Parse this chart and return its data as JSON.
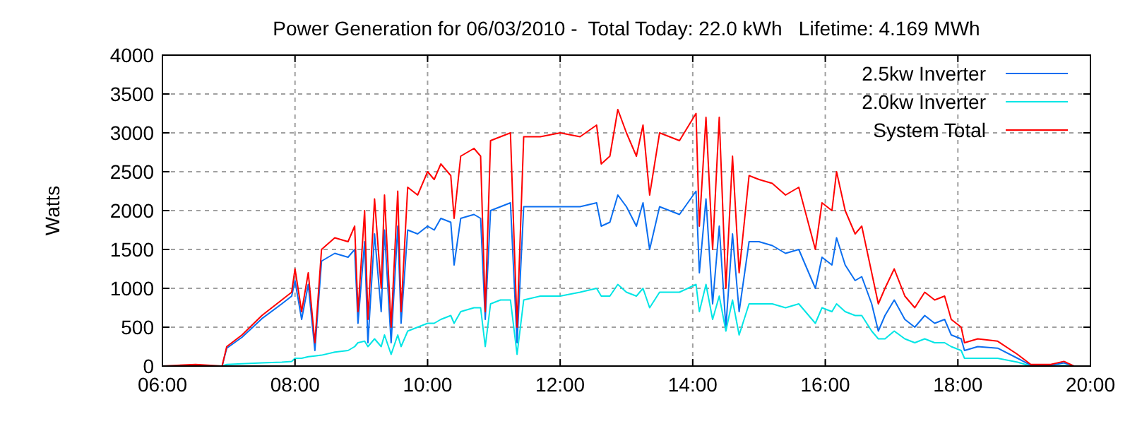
{
  "chart_data": {
    "type": "line",
    "title": "Power Generation for 06/03/2010 -  Total Today: 22.0 kWh   Lifetime: 4.169 MWh",
    "ylabel": "Watts",
    "x": [
      6.0,
      6.5,
      6.9,
      6.97,
      7.2,
      7.5,
      7.8,
      7.95,
      8.0,
      8.1,
      8.2,
      8.3,
      8.4,
      8.6,
      8.8,
      8.9,
      8.95,
      9.05,
      9.1,
      9.2,
      9.3,
      9.35,
      9.45,
      9.55,
      9.6,
      9.7,
      9.85,
      10.0,
      10.1,
      10.2,
      10.35,
      10.4,
      10.5,
      10.7,
      10.8,
      10.87,
      10.95,
      11.1,
      11.25,
      11.35,
      11.45,
      11.7,
      12.0,
      12.3,
      12.55,
      12.62,
      12.75,
      12.87,
      13.0,
      13.15,
      13.25,
      13.35,
      13.5,
      13.8,
      14.05,
      14.1,
      14.2,
      14.3,
      14.4,
      14.5,
      14.6,
      14.7,
      14.85,
      15.0,
      15.2,
      15.4,
      15.6,
      15.85,
      15.95,
      16.1,
      16.17,
      16.3,
      16.45,
      16.55,
      16.7,
      16.8,
      16.9,
      17.04,
      17.2,
      17.35,
      17.5,
      17.65,
      17.8,
      17.9,
      18.05,
      18.1,
      18.3,
      18.6,
      18.9,
      19.1,
      19.4,
      19.6,
      19.75
    ],
    "series": [
      {
        "name": "2.5kw Inverter",
        "color": "#0a6ef0",
        "values": [
          null,
          null,
          0,
          230,
          370,
          610,
          800,
          900,
          1100,
          600,
          1050,
          200,
          1350,
          1450,
          1400,
          1500,
          550,
          1600,
          300,
          1700,
          700,
          1750,
          300,
          1800,
          550,
          1750,
          1700,
          1800,
          1750,
          1900,
          1850,
          1300,
          1900,
          1950,
          1900,
          600,
          2000,
          2050,
          2100,
          300,
          2050,
          2050,
          2050,
          2050,
          2100,
          1800,
          1850,
          2200,
          2050,
          1800,
          2100,
          1500,
          2050,
          1950,
          2250,
          1200,
          2150,
          800,
          1800,
          500,
          1700,
          700,
          1600,
          1600,
          1550,
          1450,
          1500,
          1000,
          1400,
          1300,
          1650,
          1300,
          1100,
          1150,
          800,
          450,
          650,
          850,
          600,
          500,
          650,
          550,
          600,
          400,
          350,
          200,
          250,
          230,
          100,
          10,
          10,
          40,
          0
        ]
      },
      {
        "name": "2.0kw Inverter",
        "color": "#00e5e5",
        "values": [
          0,
          0,
          0,
          20,
          30,
          40,
          50,
          60,
          100,
          100,
          120,
          130,
          140,
          180,
          200,
          250,
          300,
          320,
          250,
          350,
          250,
          400,
          150,
          400,
          250,
          450,
          500,
          550,
          550,
          600,
          650,
          550,
          700,
          750,
          750,
          250,
          800,
          850,
          850,
          150,
          850,
          900,
          900,
          950,
          1000,
          900,
          900,
          1050,
          950,
          900,
          1000,
          750,
          950,
          950,
          1050,
          700,
          1050,
          600,
          900,
          450,
          850,
          400,
          800,
          800,
          800,
          750,
          800,
          550,
          750,
          700,
          800,
          700,
          650,
          650,
          450,
          350,
          350,
          450,
          350,
          300,
          350,
          300,
          300,
          250,
          200,
          100,
          100,
          100,
          50,
          0,
          0,
          10,
          0
        ]
      },
      {
        "name": "System Total",
        "color": "#ff0000",
        "values": [
          0,
          20,
          0,
          250,
          400,
          650,
          850,
          950,
          1250,
          700,
          1200,
          300,
          1500,
          1650,
          1600,
          1800,
          700,
          2000,
          600,
          2150,
          1000,
          2200,
          500,
          2250,
          700,
          2300,
          2200,
          2500,
          2400,
          2600,
          2450,
          1900,
          2700,
          2800,
          2700,
          700,
          2900,
          2950,
          3000,
          500,
          2950,
          2950,
          3000,
          2950,
          3100,
          2600,
          2700,
          3300,
          3000,
          2700,
          3100,
          2200,
          3000,
          2900,
          3250,
          1800,
          3200,
          1500,
          3200,
          1000,
          2700,
          1200,
          2450,
          2400,
          2350,
          2200,
          2300,
          1500,
          2100,
          2000,
          2500,
          2000,
          1700,
          1800,
          1200,
          800,
          1000,
          1250,
          900,
          750,
          950,
          850,
          900,
          600,
          500,
          300,
          350,
          320,
          150,
          20,
          20,
          60,
          0
        ]
      }
    ],
    "xlim": [
      6,
      20
    ],
    "xticks": [
      {
        "value": 6,
        "label": "06:00"
      },
      {
        "value": 8,
        "label": "08:00"
      },
      {
        "value": 10,
        "label": "10:00"
      },
      {
        "value": 12,
        "label": "12:00"
      },
      {
        "value": 14,
        "label": "14:00"
      },
      {
        "value": 16,
        "label": "16:00"
      },
      {
        "value": 18,
        "label": "18:00"
      },
      {
        "value": 20,
        "label": "20:00"
      }
    ],
    "ylim": [
      0,
      4000
    ],
    "yticks": [
      0,
      500,
      1000,
      1500,
      2000,
      2500,
      3000,
      3500,
      4000
    ],
    "grid": true,
    "legend": "top right",
    "line_style": "solid",
    "marker": "none"
  }
}
